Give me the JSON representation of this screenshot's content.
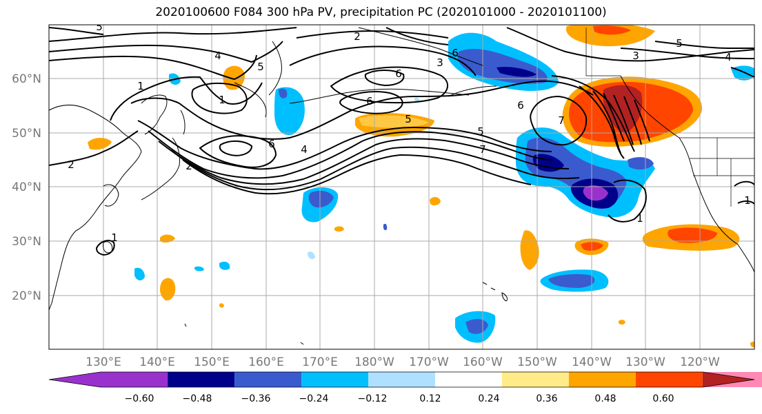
{
  "title": "2020100600 F084 300 hPa PV, precipitation PC (2020101000 - 2020101100)",
  "map": {
    "lat_labels": [
      "60°N",
      "50°N",
      "40°N",
      "30°N",
      "20°N"
    ],
    "lon_labels": [
      "130°E",
      "140°E",
      "150°E",
      "160°E",
      "170°E",
      "180°W",
      "170°W",
      "160°W",
      "150°W",
      "140°W",
      "130°W",
      "120°W"
    ],
    "contour_labels": [
      "5",
      "2",
      "3",
      "5",
      "4",
      "4",
      "1",
      "1",
      "6",
      "6",
      "3",
      "2",
      "6",
      "6",
      "5",
      "4",
      "5",
      "6",
      "5",
      "7",
      "7",
      "2",
      "1",
      "1",
      "1"
    ]
  },
  "colorbar": {
    "colors": [
      "#9932cc",
      "#00008b",
      "#3a5bcd",
      "#00bfff",
      "#b0e0ff",
      "#ffffff",
      "#ffeb88",
      "#ffa500",
      "#ff4500",
      "#b22222",
      "#ff88b4"
    ],
    "tick_labels": [
      "−0.60",
      "−0.48",
      "−0.36",
      "−0.24",
      "−0.12",
      "0.12",
      "0.24",
      "0.36",
      "0.48",
      "0.60"
    ]
  }
}
